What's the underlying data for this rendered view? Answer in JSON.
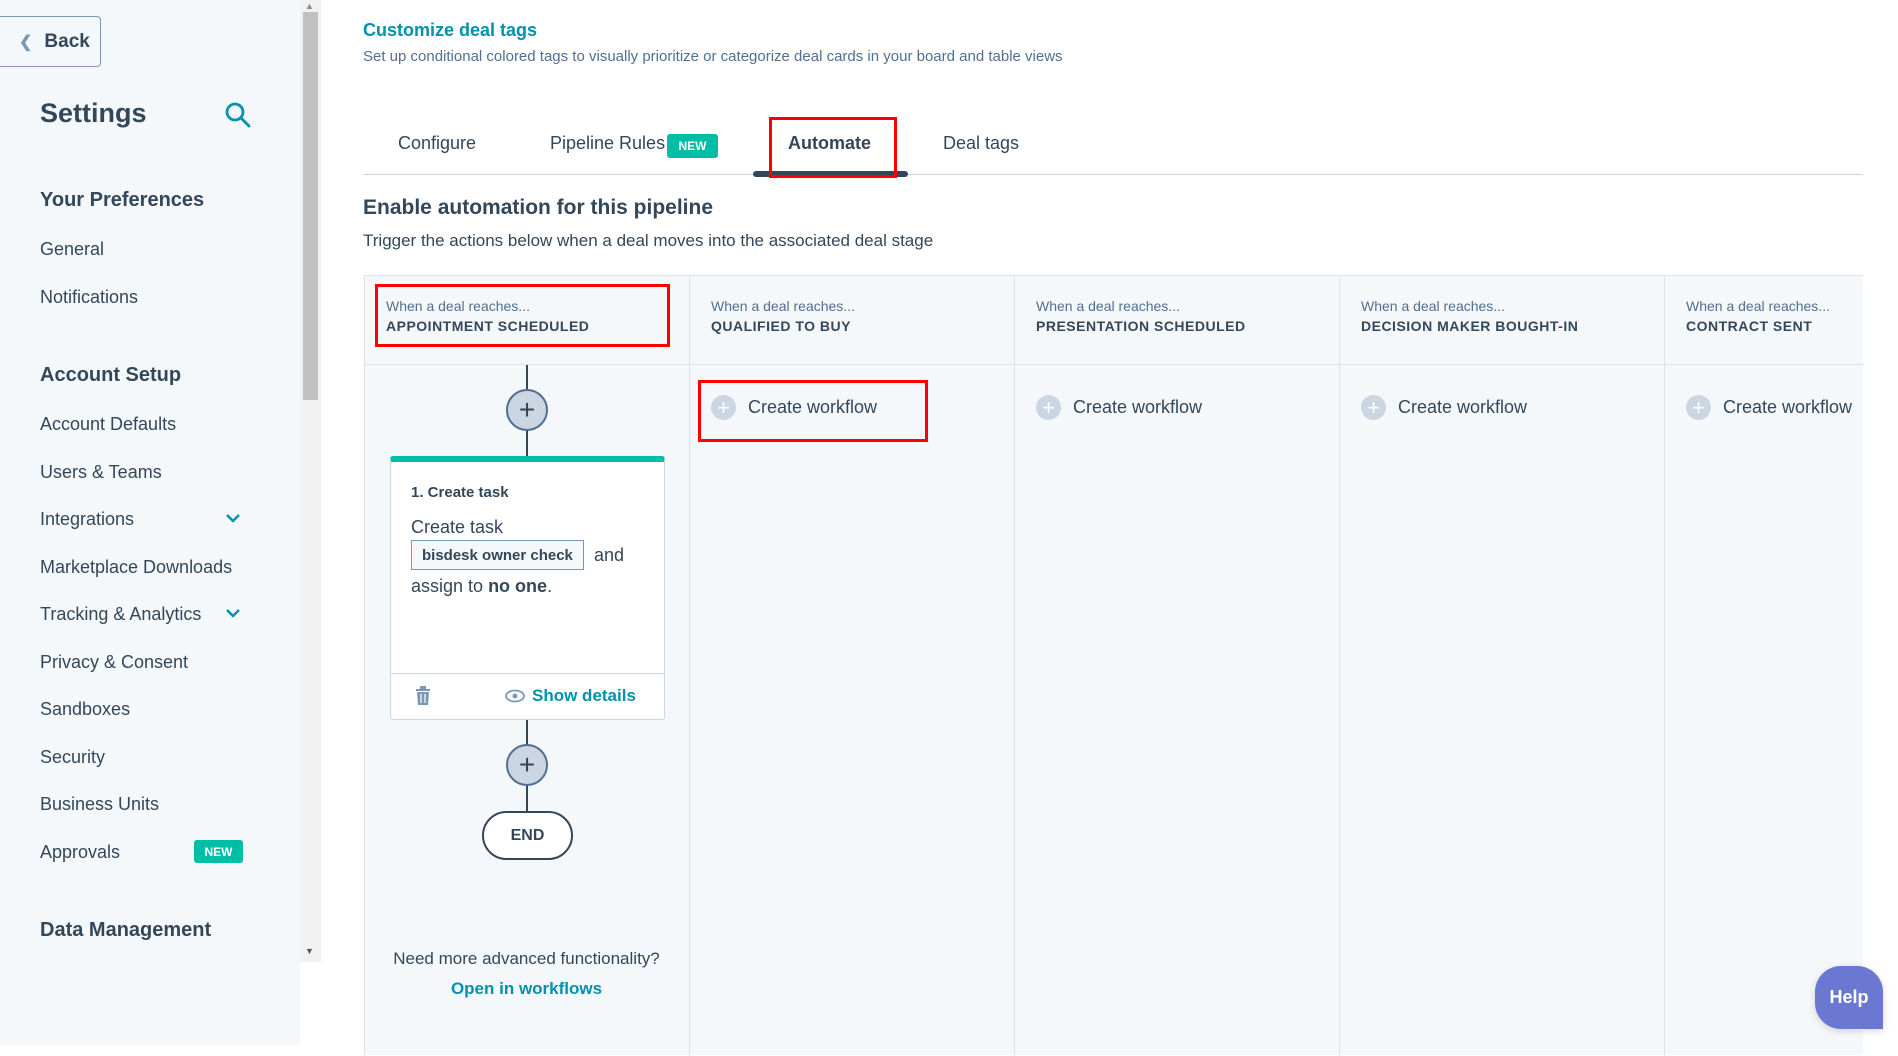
{
  "sidebar": {
    "back_label": "Back",
    "title": "Settings",
    "sections": [
      {
        "title": "Your Preferences",
        "items": [
          "General",
          "Notifications"
        ]
      },
      {
        "title": "Account Setup",
        "items": [
          "Account Defaults",
          "Users & Teams",
          "Integrations",
          "Marketplace Downloads",
          "Tracking & Analytics",
          "Privacy & Consent",
          "Sandboxes",
          "Security",
          "Business Units",
          "Approvals"
        ]
      },
      {
        "title": "Data Management",
        "items": []
      }
    ],
    "approvals_badge": "NEW"
  },
  "header": {
    "title": "Customize deal tags",
    "description": "Set up conditional colored tags to visually prioritize or categorize deal cards in your board and table views"
  },
  "tabs": [
    {
      "label": "Configure"
    },
    {
      "label": "Pipeline Rules",
      "badge": "NEW"
    },
    {
      "label": "Automate",
      "active": true
    },
    {
      "label": "Deal tags"
    }
  ],
  "automation": {
    "heading": "Enable automation for this pipeline",
    "subheading": "Trigger the actions below when a deal moves into the associated deal stage",
    "when_label": "When a deal reaches...",
    "stages": [
      "APPOINTMENT SCHEDULED",
      "QUALIFIED TO BUY",
      "PRESENTATION SCHEDULED",
      "DECISION MAKER BOUGHT-IN",
      "CONTRACT SENT"
    ],
    "create_workflow": "Create workflow",
    "action_card": {
      "title": "1. Create task",
      "line1": "Create task",
      "task_name": "bisdesk owner check",
      "and": "and",
      "assign_prefix": "assign to",
      "assignee": "no one",
      "period": ".",
      "show_details": "Show details"
    },
    "end_label": "END",
    "advanced_text": "Need more advanced functionality?",
    "advanced_link": "Open in workflows"
  },
  "help_label": "Help",
  "colors": {
    "accent": "#0091ae",
    "badge": "#00bda5",
    "help": "#6a78d1",
    "highlight": "#ff0000"
  }
}
